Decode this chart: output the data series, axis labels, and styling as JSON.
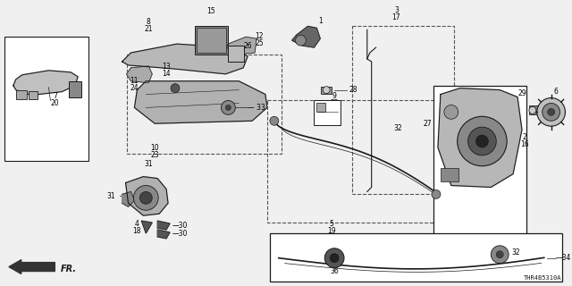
{
  "bg_color": "#f0f0f0",
  "line_color": "#1a1a1a",
  "diagram_id": "THR4B5310A",
  "font_size": 5.5,
  "label_color": "#000000",
  "figsize": [
    6.4,
    3.2
  ],
  "dpi": 100
}
